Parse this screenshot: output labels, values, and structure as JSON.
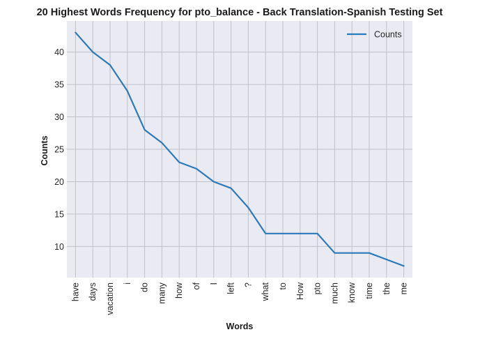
{
  "chart_data": {
    "type": "line",
    "title": "20 Highest Words Frequency for pto_balance - Back Translation-Spanish Testing Set",
    "xlabel": "Words",
    "ylabel": "Counts",
    "categories": [
      "have",
      "days",
      "vacation",
      "i",
      "do",
      "many",
      "how",
      "of",
      "I",
      "left",
      "?",
      "what",
      "to",
      "How",
      "pto",
      "much",
      "know",
      "time",
      "the",
      "me"
    ],
    "series": [
      {
        "name": "Counts",
        "values": [
          43,
          40,
          38,
          34,
          28,
          26,
          23,
          22,
          20,
          19,
          16,
          12,
          12,
          12,
          12,
          9,
          9,
          9,
          8,
          7
        ]
      }
    ],
    "yticks": [
      10,
      15,
      20,
      25,
      30,
      35,
      40
    ],
    "ylim": [
      5.2,
      44.8
    ],
    "grid": true,
    "legend": "top-right",
    "colors": {
      "line": "#2a7ab9",
      "background": "#eaeaf2",
      "grid": "#c0c0c6"
    }
  }
}
